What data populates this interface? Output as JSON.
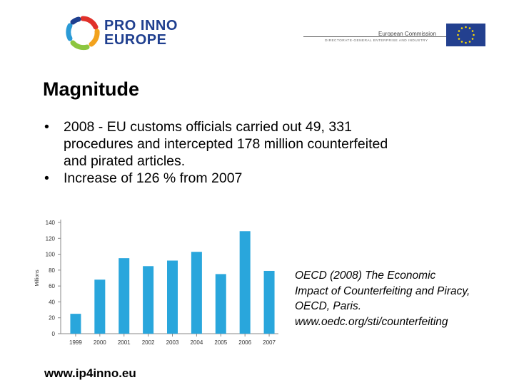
{
  "header": {
    "logo_line1": "PRO INNO",
    "logo_line2": "EUROPE",
    "ec_name": "European Commission",
    "ec_subtitle": "DIRECTORATE-GENERAL ENTERPRISE AND INDUSTRY"
  },
  "slide": {
    "title": "Magnitude",
    "bullets": [
      {
        "lines": [
          "2008 - EU customs officials carried out 49, 331",
          "procedures and  intercepted 178 million counterfeited",
          "and pirated articles."
        ]
      },
      {
        "lines": [
          "Increase of 126 % from 2007"
        ]
      }
    ],
    "bullet_glyph": "•"
  },
  "chart_data": {
    "type": "bar",
    "categories": [
      "1999",
      "2000",
      "2001",
      "2002",
      "2003",
      "2004",
      "2005",
      "2006",
      "2007"
    ],
    "values": [
      25,
      68,
      95,
      85,
      92,
      103,
      75,
      129,
      79
    ],
    "ylabel": "Millions",
    "ylim": [
      0,
      140
    ],
    "yticks": [
      0,
      20,
      40,
      60,
      80,
      100,
      120,
      140
    ],
    "bar_color": "#29a6dc",
    "grid": false,
    "legend": "none"
  },
  "reference": {
    "lines": [
      "OECD (2008) The Economic",
      "Impact of Counterfeiting and Piracy,",
      "OECD, Paris.",
      "www.oedc.org/sti/counterfeiting"
    ]
  },
  "footer": {
    "url": "www.ip4inno.eu"
  }
}
